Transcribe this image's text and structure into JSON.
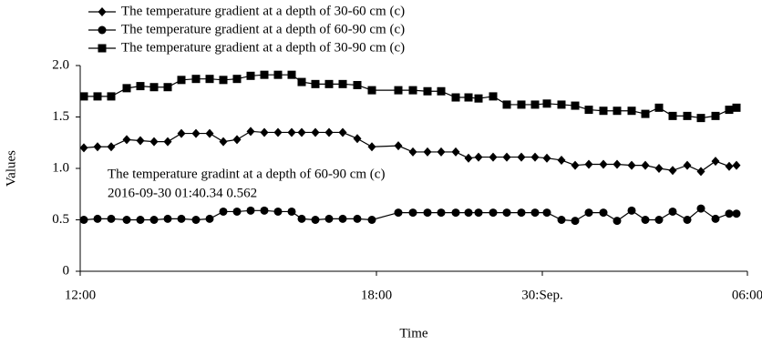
{
  "chart_data": {
    "type": "line",
    "x_label": "Time",
    "y_label": "Values",
    "annotation": [
      "The temperature gradint at a depth of 60-90 cm (c)",
      "2016-09-30 01:40.34 0.562"
    ],
    "x": [
      4,
      19,
      34,
      51,
      66,
      81,
      96,
      111,
      127,
      142,
      157,
      172,
      187,
      202,
      217,
      232,
      243,
      258,
      273,
      288,
      304,
      320,
      349,
      365,
      381,
      396,
      412,
      426,
      437,
      453,
      468,
      484,
      499,
      512,
      528,
      543,
      558,
      574,
      589,
      605,
      620,
      635,
      650,
      666,
      681,
      697,
      712,
      720
    ],
    "xlim": [
      0,
      732
    ],
    "xticks": [
      {
        "value": 0,
        "label": "12:00"
      },
      {
        "value": 325,
        "label": "18:00"
      },
      {
        "value": 507,
        "label": "30:Sep."
      },
      {
        "value": 732,
        "label": "06:00"
      }
    ],
    "ylim": [
      0,
      2
    ],
    "yticks": [
      0,
      0.5,
      {
        "value": 1,
        "label": "1.0"
      },
      1.5,
      {
        "value": 2,
        "label": "2.0"
      }
    ],
    "grid": false,
    "series": [
      {
        "name": "The temperature gradient at a depth of 30-60 cm (c)",
        "color": "#000000",
        "marker": "diamond",
        "values": [
          1.2,
          1.21,
          1.21,
          1.28,
          1.27,
          1.26,
          1.26,
          1.34,
          1.34,
          1.34,
          1.26,
          1.28,
          1.36,
          1.35,
          1.35,
          1.35,
          1.35,
          1.35,
          1.35,
          1.35,
          1.29,
          1.21,
          1.22,
          1.16,
          1.16,
          1.16,
          1.16,
          1.1,
          1.11,
          1.11,
          1.11,
          1.11,
          1.11,
          1.1,
          1.08,
          1.03,
          1.04,
          1.04,
          1.04,
          1.03,
          1.03,
          1.0,
          0.98,
          1.03,
          0.97,
          1.07,
          1.02,
          1.03
        ]
      },
      {
        "name": "The temperature gradient at a depth of 60-90 cm (c)",
        "color": "#000000",
        "marker": "circle",
        "values": [
          0.5,
          0.51,
          0.51,
          0.5,
          0.5,
          0.5,
          0.51,
          0.51,
          0.5,
          0.51,
          0.58,
          0.58,
          0.59,
          0.59,
          0.58,
          0.58,
          0.51,
          0.5,
          0.51,
          0.51,
          0.51,
          0.5,
          0.57,
          0.57,
          0.57,
          0.57,
          0.57,
          0.57,
          0.57,
          0.57,
          0.57,
          0.57,
          0.57,
          0.57,
          0.5,
          0.49,
          0.57,
          0.57,
          0.49,
          0.59,
          0.5,
          0.5,
          0.58,
          0.5,
          0.61,
          0.51,
          0.56,
          0.56
        ]
      },
      {
        "name": "The temperature gradient at a depth of 30-90 cm (c)",
        "color": "#000000",
        "marker": "square",
        "values": [
          1.7,
          1.7,
          1.7,
          1.78,
          1.8,
          1.79,
          1.79,
          1.86,
          1.87,
          1.87,
          1.86,
          1.87,
          1.9,
          1.91,
          1.91,
          1.91,
          1.84,
          1.82,
          1.82,
          1.82,
          1.81,
          1.76,
          1.76,
          1.76,
          1.75,
          1.75,
          1.69,
          1.69,
          1.68,
          1.7,
          1.62,
          1.62,
          1.62,
          1.63,
          1.62,
          1.61,
          1.57,
          1.56,
          1.56,
          1.56,
          1.53,
          1.59,
          1.51,
          1.51,
          1.49,
          1.51,
          1.57,
          1.59
        ]
      }
    ]
  }
}
